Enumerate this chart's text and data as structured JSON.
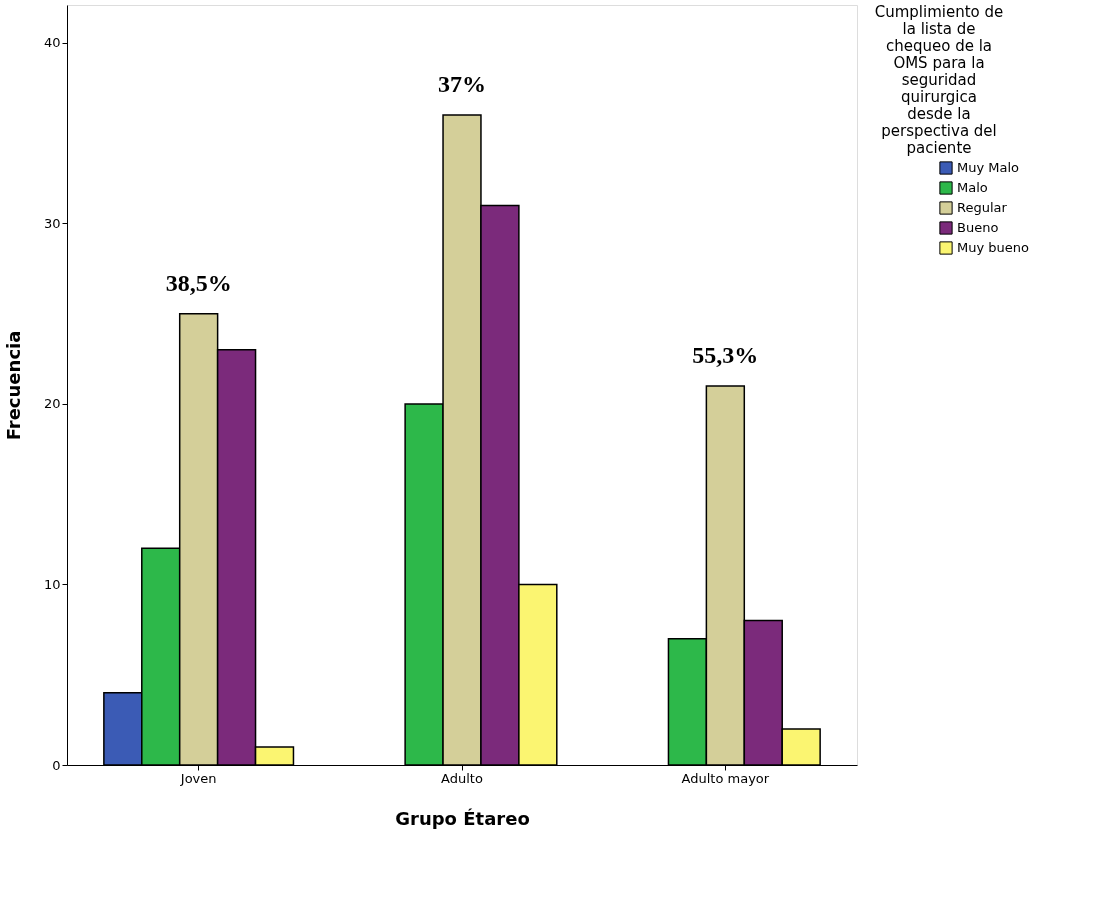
{
  "chart_data": {
    "type": "bar",
    "categories": [
      "Joven",
      "Adulto",
      "Adulto mayor"
    ],
    "xlabel": "Grupo Étareo",
    "ylabel": "Frecuencia",
    "legend_title": "Cumplimiento de la lista de chequeo de la OMS para la seguridad quirurgica desde la perspectiva del paciente",
    "series": [
      {
        "name": "Muy Malo",
        "color": "#3b5bb5",
        "values": [
          4,
          null,
          null
        ]
      },
      {
        "name": "Malo",
        "color": "#2db84a",
        "values": [
          12,
          20,
          7
        ]
      },
      {
        "name": "Regular",
        "color": "#d4cf99",
        "values": [
          25,
          36,
          21
        ]
      },
      {
        "name": "Bueno",
        "color": "#7b2a7b",
        "values": [
          23,
          31,
          8
        ]
      },
      {
        "name": "Muy bueno",
        "color": "#fbf571",
        "values": [
          1,
          10,
          2
        ]
      }
    ],
    "ylim": [
      0,
      42.1
    ],
    "yticks": [
      0,
      10,
      20,
      30,
      40
    ],
    "grid": false,
    "legend": "right",
    "annotations": [
      "38,5%",
      "37%",
      "55,3%"
    ]
  }
}
